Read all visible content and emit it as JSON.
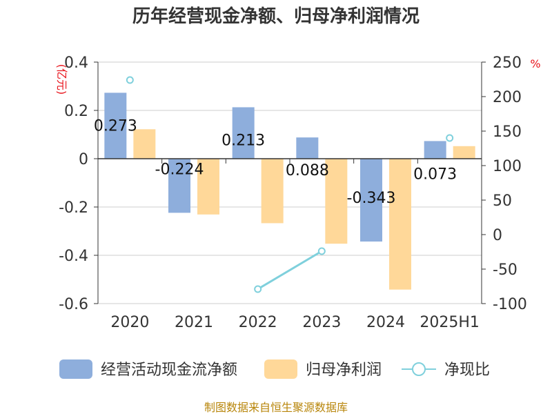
{
  "chart_data": {
    "type": "bar",
    "title": "历年经营现金净额、归母净利润情况",
    "categories": [
      "2020",
      "2021",
      "2022",
      "2023",
      "2024",
      "2025H1"
    ],
    "left_axis": {
      "unit": "(亿元)",
      "ylim": [
        -0.6,
        0.4
      ],
      "ticks": [
        "0.4",
        "0.2",
        "0",
        "-0.2",
        "-0.4",
        "-0.6"
      ],
      "tick_values": [
        0.4,
        0.2,
        0,
        -0.2,
        -0.4,
        -0.6
      ]
    },
    "right_axis": {
      "unit": "%",
      "ylim": [
        -100,
        250
      ],
      "ticks": [
        "250",
        "200",
        "150",
        "100",
        "50",
        "0",
        "-50",
        "-100"
      ],
      "tick_values": [
        250,
        200,
        150,
        100,
        50,
        0,
        -50,
        -100
      ]
    },
    "series": [
      {
        "name": "经营活动现金流净额",
        "type": "bar",
        "axis": "left",
        "color": "#8eaedc",
        "values": [
          0.273,
          -0.224,
          0.213,
          0.088,
          -0.343,
          0.073
        ],
        "labels": [
          "0.273",
          "-0.224",
          "0.213",
          "0.088",
          "-0.343",
          "0.073"
        ]
      },
      {
        "name": "归母净利润",
        "type": "bar",
        "axis": "left",
        "color": "#ffd899",
        "values": [
          0.122,
          -0.231,
          -0.267,
          -0.352,
          -0.542,
          0.052
        ]
      },
      {
        "name": "净现比",
        "type": "line",
        "axis": "right",
        "color": "#7fd0dc",
        "values": [
          224,
          null,
          -79,
          -24,
          null,
          140
        ]
      }
    ],
    "grid": true,
    "legend_position": "bottom"
  },
  "source_text": "制图数据来自恒生聚源数据库"
}
